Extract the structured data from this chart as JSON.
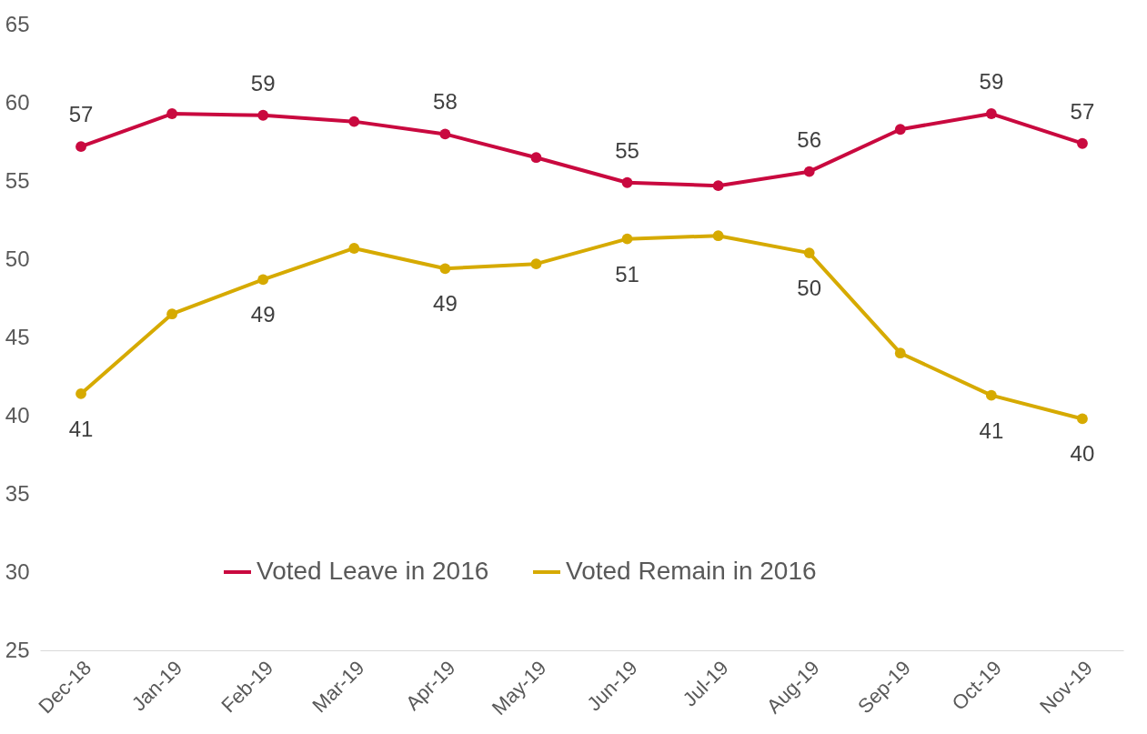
{
  "chart_data": {
    "type": "line",
    "categories": [
      "Dec-18",
      "Jan-19",
      "Feb-19",
      "Mar-19",
      "Apr-19",
      "May-19",
      "Jun-19",
      "Jul-19",
      "Aug-19",
      "Sep-19",
      "Oct-19",
      "Nov-19"
    ],
    "series": [
      {
        "name": "Voted Leave in 2016",
        "color": "#c9093f",
        "values": [
          57.2,
          59.3,
          59.2,
          58.8,
          58.0,
          56.5,
          54.9,
          54.7,
          55.6,
          58.3,
          59.3,
          57.4
        ],
        "value_labels": [
          "57",
          null,
          "59",
          null,
          "58",
          null,
          "55",
          null,
          "56",
          null,
          "59",
          "57"
        ]
      },
      {
        "name": "Voted Remain in 2016",
        "color": "#d6aa00",
        "values": [
          41.4,
          46.5,
          48.7,
          50.7,
          49.4,
          49.7,
          51.3,
          51.5,
          50.4,
          44.0,
          41.3,
          39.8
        ],
        "value_labels": [
          "41",
          null,
          "49",
          null,
          "49",
          null,
          "51",
          null,
          "50",
          null,
          "41",
          "40"
        ]
      }
    ],
    "ylim": [
      25,
      65
    ],
    "yticks": [
      25,
      30,
      35,
      40,
      45,
      50,
      55,
      60,
      65
    ],
    "grid": false,
    "legend": "bottom",
    "marker": "circle",
    "line_style": "solid"
  }
}
